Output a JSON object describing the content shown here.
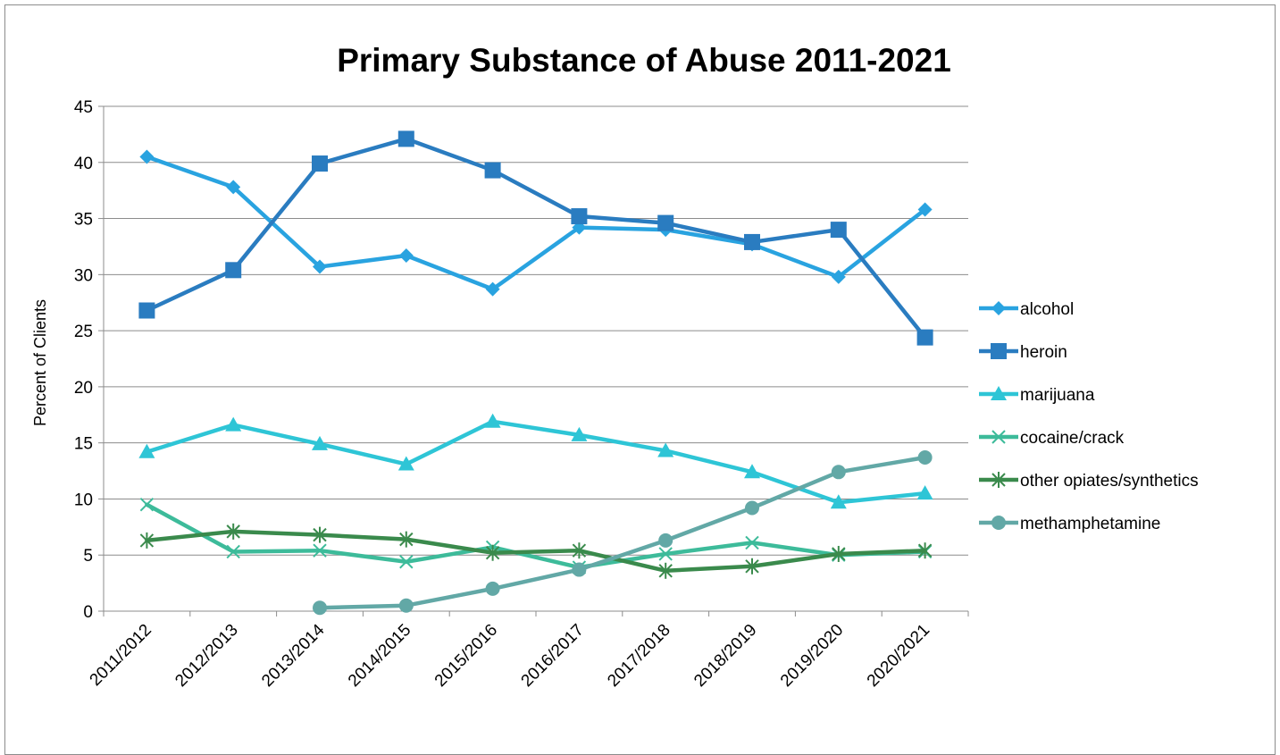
{
  "chart_data": {
    "type": "line",
    "title": "Primary Substance of Abuse 2011-2021",
    "xlabel": "",
    "ylabel": "Percent of Clients",
    "ylim": [
      0,
      45
    ],
    "yticks": [
      0,
      5,
      10,
      15,
      20,
      25,
      30,
      35,
      40,
      45
    ],
    "grid": true,
    "legend": "right",
    "categories": [
      "2011/2012",
      "2012/2013",
      "2013/2014",
      "2014/2015",
      "2015/2016",
      "2016/2017",
      "2017/2018",
      "2018/2019",
      "2019/2020",
      "2020/2021"
    ],
    "series": [
      {
        "name": "alcohol",
        "marker": "diamond",
        "color": "#29a3e0",
        "values": [
          40.5,
          37.8,
          30.7,
          31.7,
          28.7,
          34.2,
          34.0,
          32.7,
          29.8,
          35.8
        ]
      },
      {
        "name": "heroin",
        "marker": "square",
        "color": "#2a7cc0",
        "values": [
          26.8,
          30.4,
          39.9,
          42.1,
          39.3,
          35.2,
          34.6,
          32.9,
          34.0,
          24.4
        ]
      },
      {
        "name": "marijuana",
        "marker": "triangle",
        "color": "#2ec5d6",
        "values": [
          14.2,
          16.6,
          14.9,
          13.1,
          16.9,
          15.7,
          14.3,
          12.4,
          9.7,
          10.5
        ]
      },
      {
        "name": "cocaine/crack",
        "marker": "x",
        "color": "#3dbb9a",
        "values": [
          9.5,
          5.3,
          5.4,
          4.4,
          5.7,
          3.9,
          5.1,
          6.1,
          5.0,
          5.3
        ]
      },
      {
        "name": "other opiates/synthetics",
        "marker": "asterisk",
        "color": "#3a8a4c",
        "values": [
          6.3,
          7.1,
          6.8,
          6.4,
          5.2,
          5.4,
          3.6,
          4.0,
          5.1,
          5.4
        ]
      },
      {
        "name": "methamphetamine",
        "marker": "circle",
        "color": "#62a8a6",
        "values": [
          null,
          null,
          0.3,
          0.5,
          2.0,
          3.7,
          6.3,
          9.2,
          12.4,
          13.7
        ]
      }
    ]
  }
}
